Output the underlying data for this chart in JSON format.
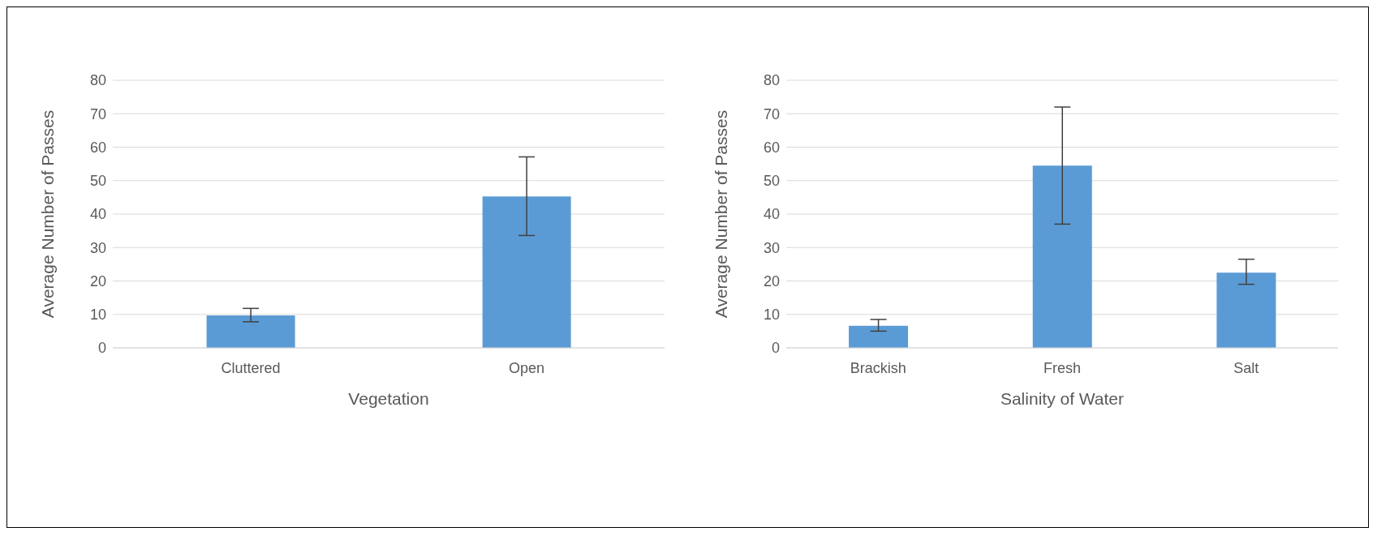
{
  "chart_data": [
    {
      "type": "bar",
      "xlabel": "Vegetation",
      "ylabel": "Average Number of Passes",
      "categories": [
        "Cluttered",
        "Open"
      ],
      "values": [
        9.7,
        45.3
      ],
      "color": "#5b9bd5",
      "errors": [
        [
          7.8,
          11.8
        ],
        [
          33.6,
          57.1
        ]
      ],
      "ylim": [
        0,
        80
      ],
      "yticks": [
        0,
        10,
        20,
        30,
        40,
        50,
        60,
        70,
        80
      ],
      "grid": "y",
      "legend": false
    },
    {
      "type": "bar",
      "xlabel": "Salinity of Water",
      "ylabel": "Average Number of Passes",
      "categories": [
        "Brackish",
        "Fresh",
        "Salt"
      ],
      "values": [
        6.6,
        54.5,
        22.5
      ],
      "color": "#5b9bd5",
      "errors": [
        [
          5,
          8.5
        ],
        [
          37,
          72
        ],
        [
          19,
          26.5
        ]
      ],
      "ylim": [
        0,
        80
      ],
      "yticks": [
        0,
        10,
        20,
        30,
        40,
        50,
        60,
        70,
        80
      ],
      "grid": "y",
      "legend": false
    }
  ]
}
